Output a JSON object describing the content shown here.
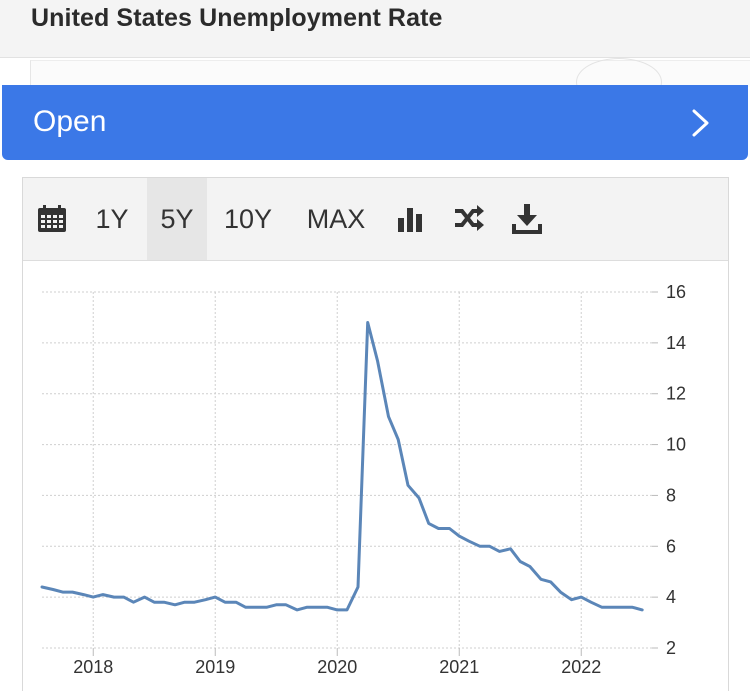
{
  "page": {
    "title": "United States Unemployment Rate"
  },
  "open_bar": {
    "label": "Open",
    "icon": "chevron-right-icon"
  },
  "toolbar": {
    "calendar_icon": "calendar-icon",
    "ranges": [
      {
        "label": "1Y",
        "active": false
      },
      {
        "label": "5Y",
        "active": true
      },
      {
        "label": "10Y",
        "active": false
      },
      {
        "label": "MAX",
        "active": false
      }
    ],
    "bar_chart_icon": "bar-chart-icon",
    "compare_icon": "shuffle-icon",
    "download_icon": "download-icon"
  },
  "colors": {
    "open_bar": "#3b78e7",
    "series_line": "#5b86b8",
    "toolbar_bg": "#f3f3f3"
  },
  "chart_data": {
    "type": "line",
    "title": "",
    "xlabel": "",
    "ylabel": "",
    "ylim": [
      2,
      16
    ],
    "xlim": [
      2017.58,
      2022.58
    ],
    "yticks": [
      2,
      4,
      6,
      8,
      10,
      12,
      14,
      16
    ],
    "xticks": [
      {
        "value": 2018,
        "label": "2018"
      },
      {
        "value": 2019,
        "label": "2019"
      },
      {
        "value": 2020,
        "label": "2020"
      },
      {
        "value": 2021,
        "label": "2021"
      },
      {
        "value": 2022,
        "label": "2022"
      }
    ],
    "grid": true,
    "y_axis_side": "right",
    "series": [
      {
        "x": [
          2017.58,
          2017.67,
          2017.75,
          2017.83,
          2017.92,
          2018.0,
          2018.08,
          2018.17,
          2018.25,
          2018.33,
          2018.42,
          2018.5,
          2018.58,
          2018.67,
          2018.75,
          2018.83,
          2018.92,
          2019.0,
          2019.08,
          2019.17,
          2019.25,
          2019.33,
          2019.42,
          2019.5,
          2019.58,
          2019.67,
          2019.75,
          2019.83,
          2019.92,
          2020.0,
          2020.08,
          2020.17,
          2020.25,
          2020.33,
          2020.42,
          2020.5,
          2020.58,
          2020.67,
          2020.75,
          2020.83,
          2020.92,
          2021.0,
          2021.08,
          2021.17,
          2021.25,
          2021.33,
          2021.42,
          2021.5,
          2021.58,
          2021.67,
          2021.75,
          2021.83,
          2021.92,
          2022.0,
          2022.08,
          2022.17,
          2022.25,
          2022.33,
          2022.42,
          2022.5
        ],
        "y": [
          4.4,
          4.3,
          4.2,
          4.2,
          4.1,
          4.0,
          4.1,
          4.0,
          4.0,
          3.8,
          4.0,
          3.8,
          3.8,
          3.7,
          3.8,
          3.8,
          3.9,
          4.0,
          3.8,
          3.8,
          3.6,
          3.6,
          3.6,
          3.7,
          3.7,
          3.5,
          3.6,
          3.6,
          3.6,
          3.5,
          3.5,
          4.4,
          14.8,
          13.3,
          11.1,
          10.2,
          8.4,
          7.9,
          6.9,
          6.7,
          6.7,
          6.4,
          6.2,
          6.0,
          6.0,
          5.8,
          5.9,
          5.4,
          5.2,
          4.7,
          4.6,
          4.2,
          3.9,
          4.0,
          3.8,
          3.6,
          3.6,
          3.6,
          3.6,
          3.5
        ]
      }
    ]
  }
}
